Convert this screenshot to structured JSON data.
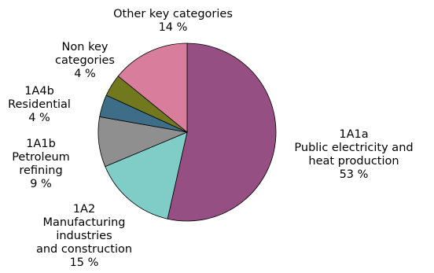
{
  "chart_data": {
    "type": "pie",
    "title": "",
    "unit": "%",
    "start_angle_deg": 0,
    "direction": "clockwise",
    "slices": [
      {
        "label_lines": [
          "1A1a",
          "Public electricity and",
          "heat production"
        ],
        "value": 53,
        "value_text": "53 %",
        "color": "#954F82"
      },
      {
        "label_lines": [
          "1A2",
          "Manufacturing",
          "industries",
          "and construction"
        ],
        "value": 15,
        "value_text": "15 %",
        "color": "#80CCC6"
      },
      {
        "label_lines": [
          "1A1b",
          "Petroleum",
          "refining"
        ],
        "value": 9,
        "value_text": "9 %",
        "color": "#8F8F8F"
      },
      {
        "label_lines": [
          "1A4b",
          "Residential"
        ],
        "value": 4,
        "value_text": "4 %",
        "color": "#3E6E87"
      },
      {
        "label_lines": [
          "Non key",
          "categories"
        ],
        "value": 4,
        "value_text": "4 %",
        "color": "#72781E"
      },
      {
        "label_lines": [
          "Other key categories"
        ],
        "value": 14,
        "value_text": "14 %",
        "color": "#D87D9B"
      }
    ]
  }
}
